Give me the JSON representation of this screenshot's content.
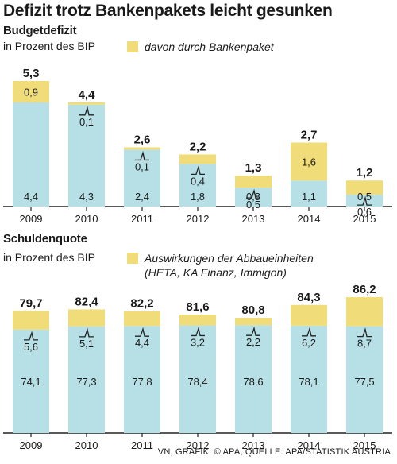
{
  "headline": "Defizit trotz Bankenpakets leicht gesunken",
  "footer": "VN, GRAFIK: © APA, QUELLE: APA/STATISTIK AUSTRIA",
  "colors": {
    "base": "#b7dfe6",
    "extra": "#f0dd7a",
    "axis": "#222222"
  },
  "chart_data": [
    {
      "type": "bar",
      "title": "Budgetdefizit",
      "subtitle": "in Prozent des BIP",
      "legend": [
        "davon durch Bankenpaket"
      ],
      "categories": [
        "2009",
        "2010",
        "2011",
        "2012",
        "2013",
        "2014",
        "2015"
      ],
      "series": [
        {
          "values": [
            4.4,
            4.3,
            2.4,
            1.8,
            0.8,
            1.1,
            0.5
          ],
          "labels": [
            "4,4",
            "4,3",
            "2,4",
            "1,8",
            "0,8",
            "1,1",
            "0,5"
          ]
        },
        {
          "name": "davon durch Bankenpaket",
          "values": [
            0.9,
            0.1,
            0.1,
            0.4,
            0.5,
            1.6,
            0.6
          ],
          "labels": [
            "0,9",
            "0,1",
            "0,1",
            "0,4",
            "0,5",
            "1,6",
            "0,6"
          ]
        }
      ],
      "totals": [
        "5,3",
        "4,4",
        "2,6",
        "2,2",
        "1,3",
        "2,7",
        "1,2"
      ],
      "ylim": [
        0,
        5.5
      ]
    },
    {
      "type": "bar",
      "title": "Schuldenquote",
      "subtitle": "in Prozent des BIP",
      "legend": [
        "Auswirkungen der Abbaueinheiten",
        "(HETA, KA Finanz, Immigon)"
      ],
      "categories": [
        "2009",
        "2010",
        "2011",
        "2012",
        "2013",
        "2014",
        "2015"
      ],
      "series": [
        {
          "values": [
            74.1,
            77.3,
            77.8,
            78.4,
            78.6,
            78.1,
            77.5
          ],
          "labels": [
            "74,1",
            "77,3",
            "77,8",
            "78,4",
            "78,6",
            "78,1",
            "77,5"
          ]
        },
        {
          "name": "Auswirkungen der Abbaueinheiten (HETA, KA Finanz, Immigon)",
          "values": [
            5.6,
            5.1,
            4.4,
            3.2,
            2.2,
            6.2,
            8.7
          ],
          "labels": [
            "5,6",
            "5,1",
            "4,4",
            "3,2",
            "2,2",
            "6,2",
            "8,7"
          ]
        }
      ],
      "totals": [
        "79,7",
        "82,4",
        "82,2",
        "81,6",
        "80,8",
        "84,3",
        "86,2"
      ],
      "break_axis": true
    }
  ]
}
